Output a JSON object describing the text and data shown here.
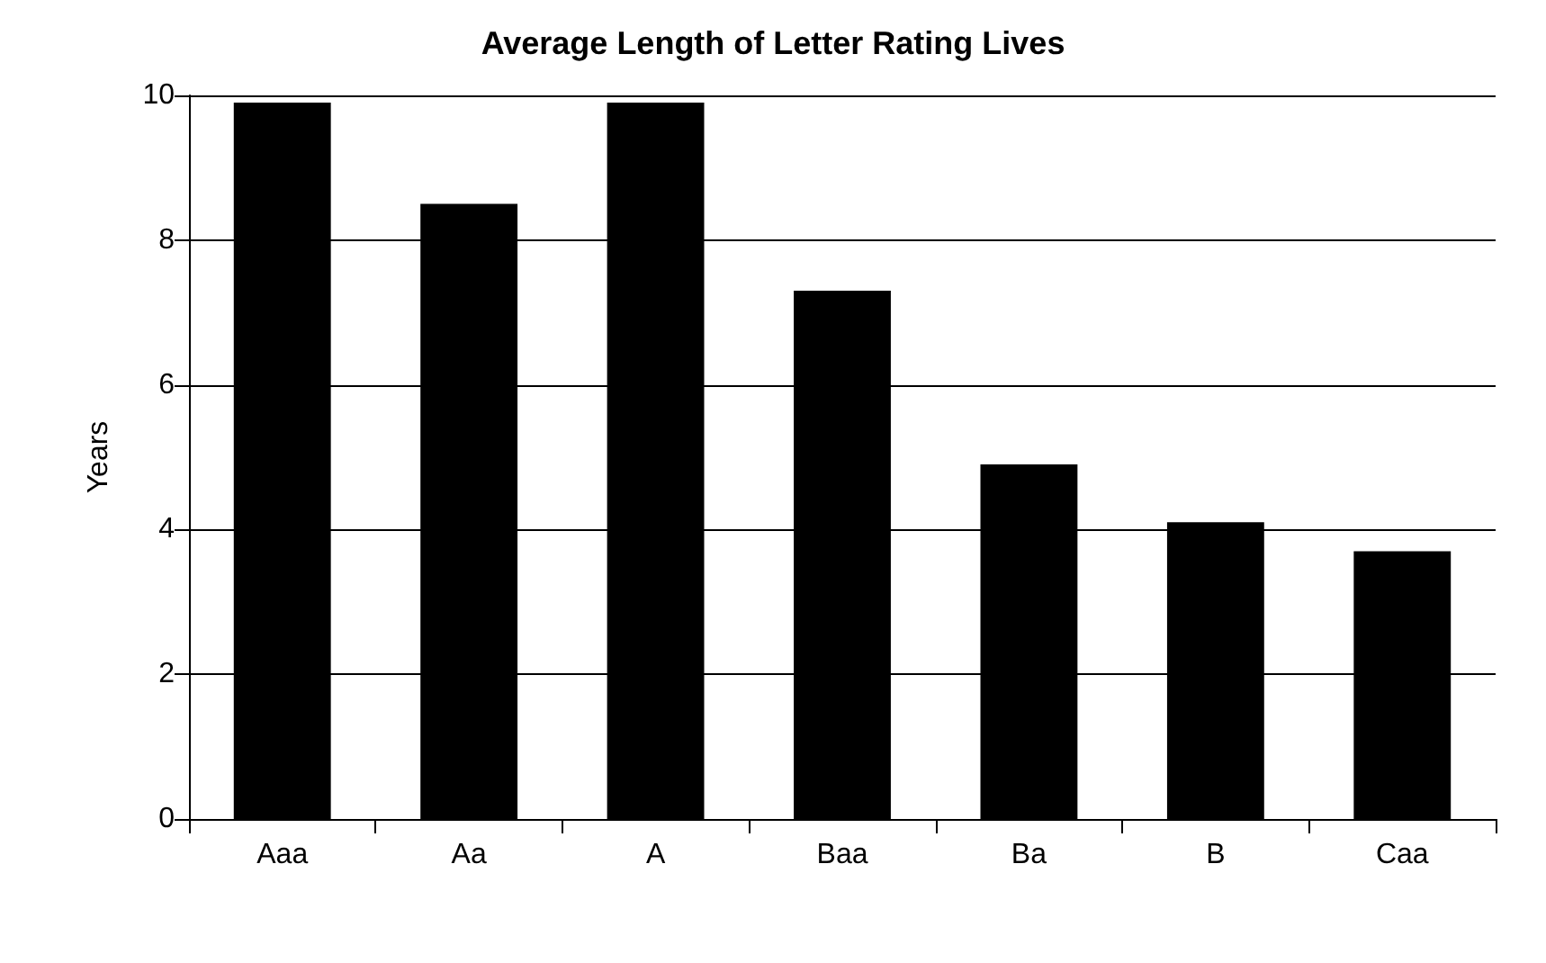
{
  "chart_data": {
    "type": "bar",
    "title": "Average Length of Letter Rating Lives",
    "ylabel": "Years",
    "categories": [
      "Aaa",
      "Aa",
      "A",
      "Baa",
      "Ba",
      "B",
      "Caa"
    ],
    "values": [
      9.9,
      8.5,
      9.9,
      7.3,
      4.9,
      4.1,
      3.7
    ],
    "color": "#000000",
    "ylim": [
      0,
      10
    ],
    "yticks": [
      0,
      2,
      4,
      6,
      8,
      10
    ],
    "grid": "y"
  }
}
